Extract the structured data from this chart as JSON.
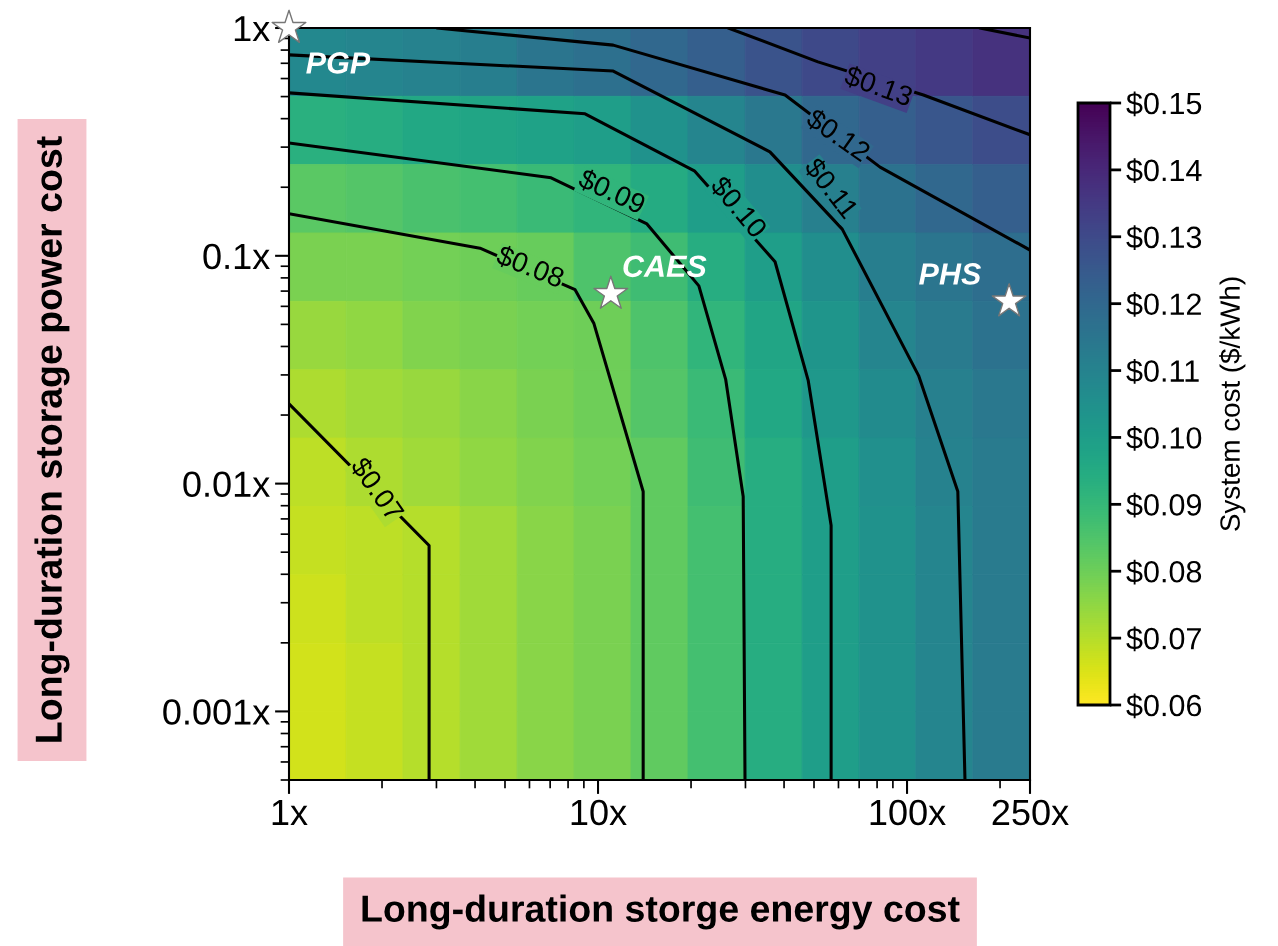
{
  "chart_data": {
    "type": "heatmap",
    "xlabel": "Long-duration storge energy cost",
    "ylabel": "Long-duration storage power cost",
    "clabel": "System cost ($/kWh)",
    "log": "xy",
    "grid": false,
    "x": [
      1.24,
      1.89,
      2.89,
      4.43,
      6.76,
      10.35,
      15.8,
      24.2,
      37.0,
      56.6,
      86.5,
      132,
      202
    ],
    "y": [
      0.708,
      0.355,
      0.178,
      0.0891,
      0.0447,
      0.0224,
      0.0112,
      0.00562,
      0.00282,
      0.00141,
      0.000708
    ],
    "cells": [
      [
        0.108,
        0.109,
        0.11,
        0.112,
        0.115,
        0.117,
        0.12,
        0.123,
        0.127,
        0.13,
        0.133,
        0.135,
        0.137
      ],
      [
        0.093,
        0.094,
        0.096,
        0.097,
        0.098,
        0.1,
        0.104,
        0.109,
        0.114,
        0.12,
        0.123,
        0.126,
        0.129
      ],
      [
        0.083,
        0.084,
        0.086,
        0.087,
        0.089,
        0.091,
        0.095,
        0.1,
        0.106,
        0.111,
        0.116,
        0.12,
        0.123
      ],
      [
        0.078,
        0.078,
        0.079,
        0.08,
        0.081,
        0.085,
        0.088,
        0.094,
        0.1,
        0.106,
        0.112,
        0.115,
        0.118
      ],
      [
        0.074,
        0.075,
        0.077,
        0.078,
        0.079,
        0.08,
        0.085,
        0.091,
        0.097,
        0.103,
        0.109,
        0.113,
        0.116
      ],
      [
        0.071,
        0.073,
        0.074,
        0.076,
        0.078,
        0.08,
        0.084,
        0.089,
        0.096,
        0.102,
        0.107,
        0.111,
        0.114
      ],
      [
        0.069,
        0.071,
        0.073,
        0.075,
        0.077,
        0.079,
        0.082,
        0.088,
        0.094,
        0.1,
        0.105,
        0.11,
        0.113
      ],
      [
        0.068,
        0.069,
        0.07,
        0.073,
        0.076,
        0.078,
        0.082,
        0.087,
        0.094,
        0.1,
        0.104,
        0.109,
        0.113
      ],
      [
        0.067,
        0.069,
        0.07,
        0.073,
        0.076,
        0.078,
        0.082,
        0.087,
        0.094,
        0.1,
        0.104,
        0.109,
        0.113
      ],
      [
        0.066,
        0.068,
        0.07,
        0.073,
        0.076,
        0.078,
        0.082,
        0.087,
        0.094,
        0.1,
        0.104,
        0.109,
        0.113
      ],
      [
        0.066,
        0.068,
        0.07,
        0.073,
        0.076,
        0.078,
        0.082,
        0.087,
        0.094,
        0.1,
        0.104,
        0.109,
        0.113
      ]
    ],
    "clim": [
      0.06,
      0.15
    ],
    "cticks": [
      {
        "value": 0.06,
        "label": "$0.06"
      },
      {
        "value": 0.07,
        "label": "$0.07"
      },
      {
        "value": 0.08,
        "label": "$0.08"
      },
      {
        "value": 0.09,
        "label": "$0.09"
      },
      {
        "value": 0.1,
        "label": "$0.10"
      },
      {
        "value": 0.11,
        "label": "$0.11"
      },
      {
        "value": 0.12,
        "label": "$0.12"
      },
      {
        "value": 0.13,
        "label": "$0.13"
      },
      {
        "value": 0.14,
        "label": "$0.14"
      },
      {
        "value": 0.15,
        "label": "$0.15"
      }
    ],
    "xlim": [
      1,
      250
    ],
    "ylim": [
      0.0005,
      1
    ],
    "xticks": [
      {
        "value": 1,
        "label": "1x"
      },
      {
        "value": 10,
        "label": "10x"
      },
      {
        "value": 100,
        "label": "100x"
      },
      {
        "value": 250,
        "label": "250x"
      }
    ],
    "yticks": [
      {
        "value": 0.001,
        "label": "0.001x"
      },
      {
        "value": 0.01,
        "label": "0.01x"
      },
      {
        "value": 0.1,
        "label": "0.1x"
      },
      {
        "value": 1,
        "label": "1x"
      }
    ],
    "series": [
      {
        "type": "line",
        "color": "#000000",
        "x": [
          1,
          2.84,
          2.84
        ],
        "values": [
          0.0224,
          0.00535,
          0.0005
        ]
      },
      {
        "type": "line",
        "color": "#000000",
        "x": [
          1,
          4.15,
          8.43,
          9.7,
          14.0,
          14.0
        ],
        "values": [
          0.153,
          0.108,
          0.071,
          0.0504,
          0.00923,
          0.0005
        ]
      },
      {
        "type": "line",
        "color": "#000000",
        "x": [
          1,
          7.05,
          14.4,
          21.2,
          25.9,
          29.5,
          29.9
        ],
        "values": [
          0.313,
          0.22,
          0.138,
          0.0738,
          0.0286,
          0.00877,
          0.0005
        ]
      },
      {
        "type": "line",
        "color": "#000000",
        "x": [
          1,
          9.08,
          20.5,
          37.4,
          47.9,
          56.8,
          56.8
        ],
        "values": [
          0.519,
          0.42,
          0.236,
          0.0942,
          0.0283,
          0.00655,
          0.0005
        ]
      },
      {
        "type": "line",
        "color": "#000000",
        "x": [
          1,
          11.2,
          36.0,
          61.7,
          109,
          146,
          154
        ],
        "values": [
          0.762,
          0.647,
          0.286,
          0.131,
          0.0298,
          0.00923,
          0.0005
        ]
      },
      {
        "type": "line",
        "color": "#000000",
        "x": [
          3.01,
          11.2,
          40.3,
          81.8,
          250
        ],
        "values": [
          1,
          0.841,
          0.508,
          0.245,
          0.106
        ]
      },
      {
        "type": "line",
        "color": "#000000",
        "x": [
          26.4,
          51.5,
          113,
          250
        ],
        "values": [
          1,
          0.71,
          0.508,
          0.34
        ]
      },
      {
        "type": "line",
        "color": "#000000",
        "x": [
          172,
          250
        ],
        "values": [
          1,
          0.904
        ]
      },
      {
        "type": "scatter",
        "name": "PGP",
        "marker": "star",
        "color": "#ffffff",
        "x": [
          1
        ],
        "values": [
          1
        ]
      },
      {
        "type": "scatter",
        "name": "CAES",
        "marker": "star",
        "color": "#ffffff",
        "x": [
          11
        ],
        "values": [
          0.068
        ]
      },
      {
        "type": "scatter",
        "name": "PHS",
        "marker": "star",
        "color": "#ffffff",
        "x": [
          214
        ],
        "values": [
          0.063
        ]
      }
    ],
    "annotations": [
      "$0.07",
      "$0.08",
      "$0.09",
      "$0.10",
      "$0.11",
      "$0.12",
      "$0.13"
    ]
  }
}
